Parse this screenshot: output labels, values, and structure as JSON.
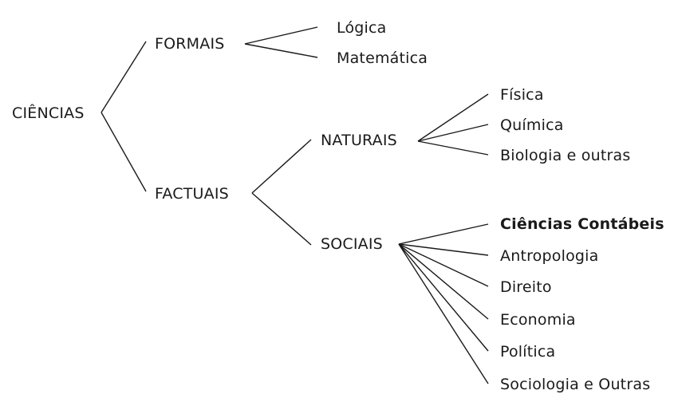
{
  "diagram": {
    "root": "CIÊNCIAS",
    "branches": {
      "formais": {
        "label": "FORMAIS",
        "children": [
          "Lógica",
          "Matemática"
        ]
      },
      "factuais": {
        "label": "FACTUAIS",
        "naturais": {
          "label": "NATURAIS",
          "children": [
            "Física",
            "Química",
            "Biologia e outras"
          ]
        },
        "sociais": {
          "label": "SOCIAIS",
          "children": [
            "Ciências Contábeis",
            "Antropologia",
            "Direito",
            "Economia",
            "Política",
            "Sociologia e Outras"
          ],
          "highlighted": "Ciências Contábeis"
        }
      }
    }
  }
}
